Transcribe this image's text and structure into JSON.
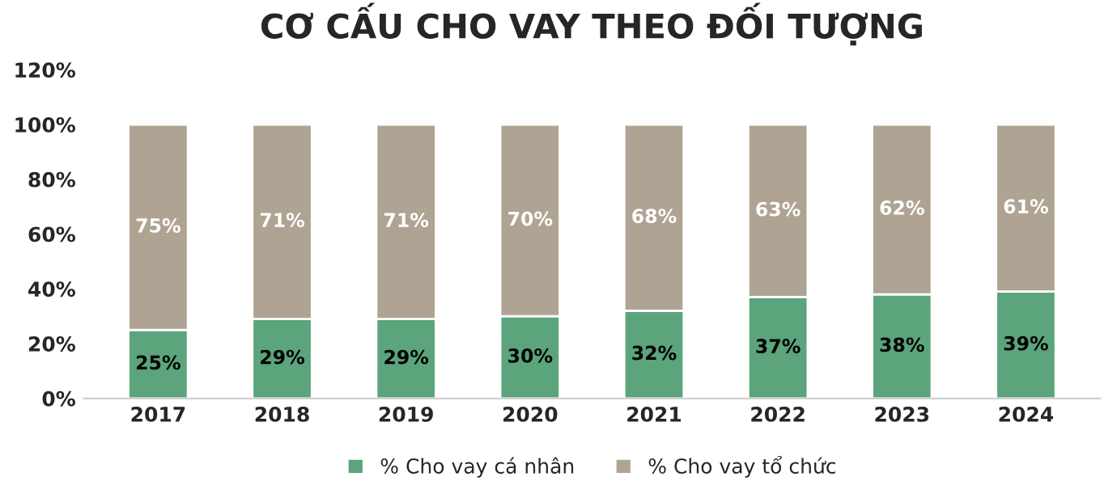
{
  "chart_data": {
    "type": "bar",
    "title": "CƠ CẤU CHO VAY THEO ĐỐI TƯỢNG",
    "stacked": true,
    "categories": [
      "2017",
      "2018",
      "2019",
      "2020",
      "2021",
      "2022",
      "2023",
      "2024"
    ],
    "series": [
      {
        "name": "% Cho vay cá nhân",
        "color": "#5ba47c",
        "values": [
          25,
          29,
          29,
          30,
          32,
          37,
          38,
          39
        ],
        "value_labels": [
          "25%",
          "29%",
          "29%",
          "30%",
          "32%",
          "37%",
          "38%",
          "39%"
        ]
      },
      {
        "name": "% Cho vay tổ chức",
        "color": "#afa493",
        "values": [
          75,
          71,
          71,
          70,
          68,
          63,
          62,
          61
        ],
        "value_labels": [
          "75%",
          "71%",
          "71%",
          "70%",
          "68%",
          "63%",
          "62%",
          "61%"
        ]
      }
    ],
    "ylim": [
      0,
      120
    ],
    "yticks": [
      {
        "value": 0,
        "label": "0%"
      },
      {
        "value": 20,
        "label": "20%"
      },
      {
        "value": 40,
        "label": "40%"
      },
      {
        "value": 60,
        "label": "60%"
      },
      {
        "value": 80,
        "label": "80%"
      },
      {
        "value": 100,
        "label": "100%"
      },
      {
        "value": 120,
        "label": "120%"
      }
    ],
    "grid": false,
    "legend": "bottom"
  }
}
